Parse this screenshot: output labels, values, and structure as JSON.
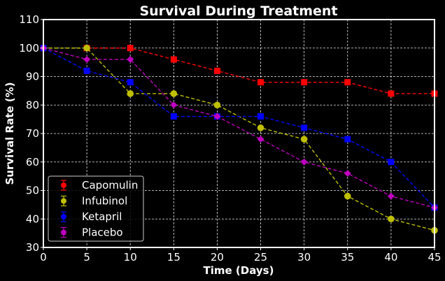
{
  "chart_data": {
    "type": "line",
    "title": "Survival During Treatment",
    "xlabel": "Time (Days)",
    "ylabel": "Survival Rate (%)",
    "x": [
      0,
      5,
      10,
      15,
      20,
      25,
      30,
      35,
      40,
      45
    ],
    "xlim": [
      0,
      45
    ],
    "ylim": [
      30,
      110
    ],
    "xticks": [
      "0",
      "5",
      "10",
      "15",
      "20",
      "25",
      "30",
      "35",
      "40",
      "45"
    ],
    "yticks": [
      "30",
      "40",
      "50",
      "60",
      "70",
      "80",
      "90",
      "100",
      "110"
    ],
    "grid": true,
    "legend_position": "bottom-left",
    "series": [
      {
        "name": "Capomulin",
        "color": "#ff0000",
        "marker": "square",
        "values": [
          100,
          100,
          100,
          96,
          92,
          88,
          88,
          88,
          84,
          84
        ]
      },
      {
        "name": "Infubinol",
        "color": "#bfbf00",
        "marker": "circle",
        "values": [
          100,
          100,
          84,
          84,
          80,
          72,
          68,
          48,
          40,
          36
        ]
      },
      {
        "name": "Ketapril",
        "color": "#0000ff",
        "marker": "square",
        "values": [
          100,
          92,
          88,
          76,
          76,
          76,
          72,
          68,
          60,
          44
        ]
      },
      {
        "name": "Placebo",
        "color": "#bf00bf",
        "marker": "diamond",
        "values": [
          100,
          96,
          96,
          80,
          76,
          68,
          60,
          56,
          48,
          44
        ]
      }
    ]
  }
}
